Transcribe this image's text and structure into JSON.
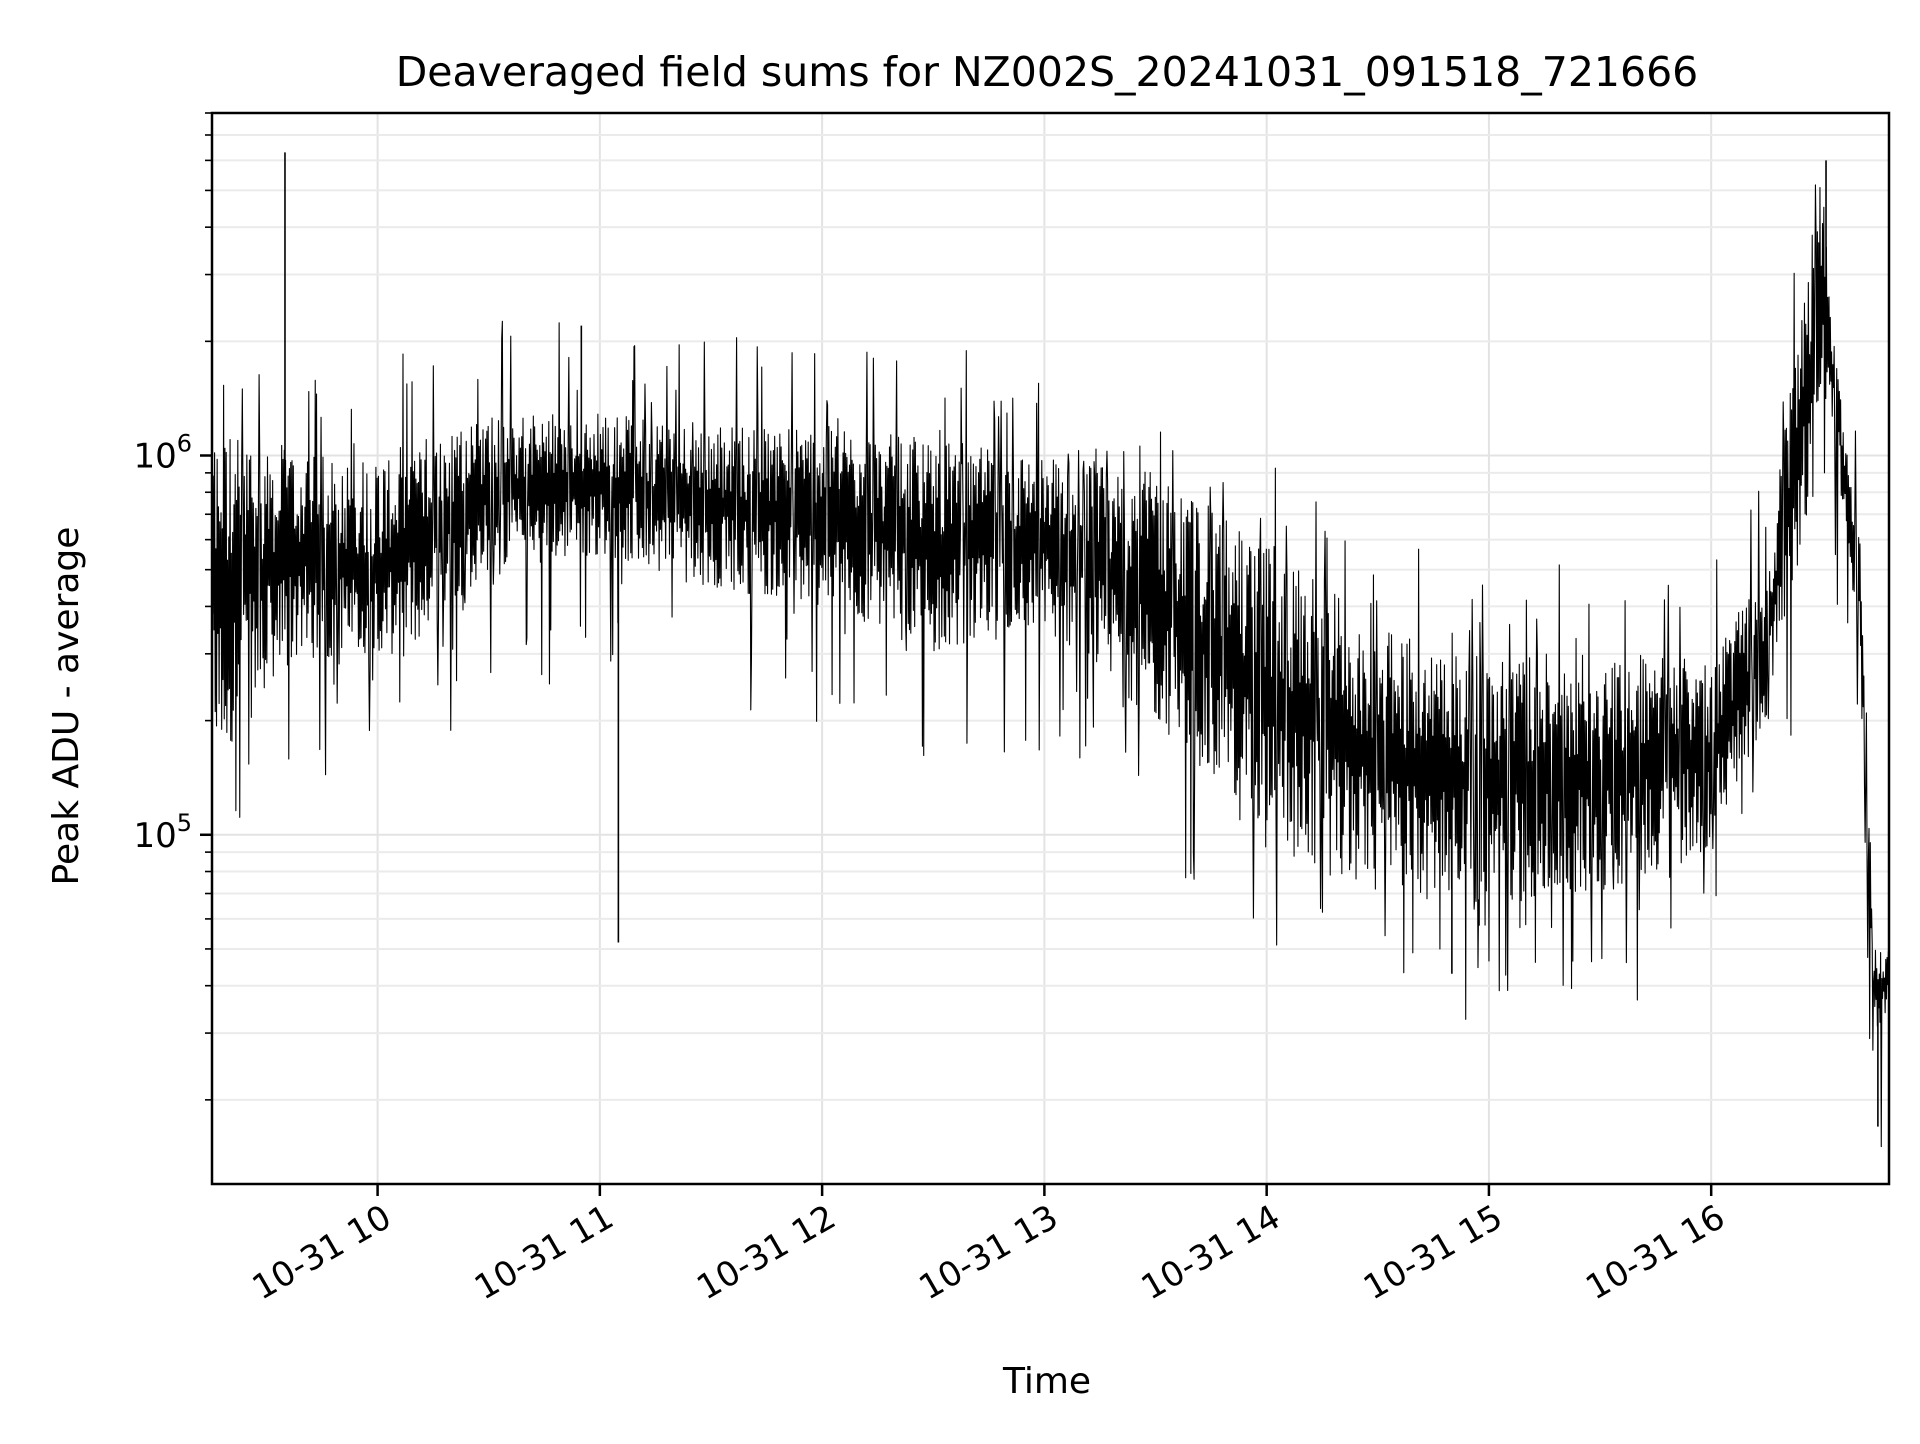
{
  "chart_data": {
    "type": "line",
    "title": "Deaveraged field sums for NZ002S_20241031_091518_721666",
    "xlabel": "Time",
    "ylabel": "Peak ADU - average",
    "x_axis": {
      "type": "time",
      "range": [
        "2024-10-31 09:15:18",
        "2024-10-31 16:48:00"
      ],
      "ticks": [
        {
          "value": "2024-10-31 10:00",
          "label": "10-31 10"
        },
        {
          "value": "2024-10-31 11:00",
          "label": "10-31 11"
        },
        {
          "value": "2024-10-31 12:00",
          "label": "10-31 12"
        },
        {
          "value": "2024-10-31 13:00",
          "label": "10-31 13"
        },
        {
          "value": "2024-10-31 14:00",
          "label": "10-31 14"
        },
        {
          "value": "2024-10-31 15:00",
          "label": "10-31 15"
        },
        {
          "value": "2024-10-31 16:00",
          "label": "10-31 16"
        }
      ]
    },
    "y_axis": {
      "scale": "log",
      "range": [
        12000,
        8000000
      ],
      "ticks": [
        {
          "value": 100000,
          "base": "10",
          "exp": "5"
        },
        {
          "value": 1000000,
          "base": "10",
          "exp": "6"
        }
      ]
    },
    "grid": true,
    "legend": "none",
    "series_color": "#000000",
    "series": [
      {
        "band_profile": [
          {
            "t": "2024-10-31 09:15",
            "low": 150000,
            "high": 1200000
          },
          {
            "t": "2024-10-31 09:40",
            "low": 300000,
            "high": 1000000
          },
          {
            "t": "2024-10-31 10:00",
            "low": 250000,
            "high": 1000000
          },
          {
            "t": "2024-10-31 10:30",
            "low": 500000,
            "high": 1300000
          },
          {
            "t": "2024-10-31 11:00",
            "low": 550000,
            "high": 1300000
          },
          {
            "t": "2024-10-31 11:30",
            "low": 450000,
            "high": 1200000
          },
          {
            "t": "2024-10-31 12:00",
            "low": 400000,
            "high": 1200000
          },
          {
            "t": "2024-10-31 12:30",
            "low": 300000,
            "high": 1100000
          },
          {
            "t": "2024-10-31 13:00",
            "low": 350000,
            "high": 1000000
          },
          {
            "t": "2024-10-31 13:30",
            "low": 200000,
            "high": 900000
          },
          {
            "t": "2024-10-31 14:00",
            "low": 90000,
            "high": 600000
          },
          {
            "t": "2024-10-31 14:30",
            "low": 70000,
            "high": 350000
          },
          {
            "t": "2024-10-31 15:00",
            "low": 65000,
            "high": 300000
          },
          {
            "t": "2024-10-31 15:30",
            "low": 70000,
            "high": 300000
          },
          {
            "t": "2024-10-31 16:00",
            "low": 90000,
            "high": 300000
          },
          {
            "t": "2024-10-31 16:15",
            "low": 200000,
            "high": 500000
          },
          {
            "t": "2024-10-31 16:25",
            "low": 600000,
            "high": 3000000
          },
          {
            "t": "2024-10-31 16:30",
            "low": 1500000,
            "high": 5500000
          },
          {
            "t": "2024-10-31 16:36",
            "low": 700000,
            "high": 1100000
          },
          {
            "t": "2024-10-31 16:40",
            "low": 300000,
            "high": 700000
          },
          {
            "t": "2024-10-31 16:42",
            "low": 80000,
            "high": 200000
          },
          {
            "t": "2024-10-31 16:44",
            "low": 30000,
            "high": 50000
          },
          {
            "t": "2024-10-31 16:48",
            "low": 35000,
            "high": 50000
          }
        ],
        "notable_points": [
          {
            "t": "2024-10-31 09:35",
            "value": 6300000
          },
          {
            "t": "2024-10-31 10:55",
            "value": 2200000
          },
          {
            "t": "2024-10-31 11:05",
            "value": 52000
          },
          {
            "t": "2024-10-31 14:50",
            "value": 43000
          },
          {
            "t": "2024-10-31 16:31",
            "value": 6000000
          },
          {
            "t": "2024-10-31 16:45",
            "value": 17000
          }
        ]
      }
    ]
  }
}
